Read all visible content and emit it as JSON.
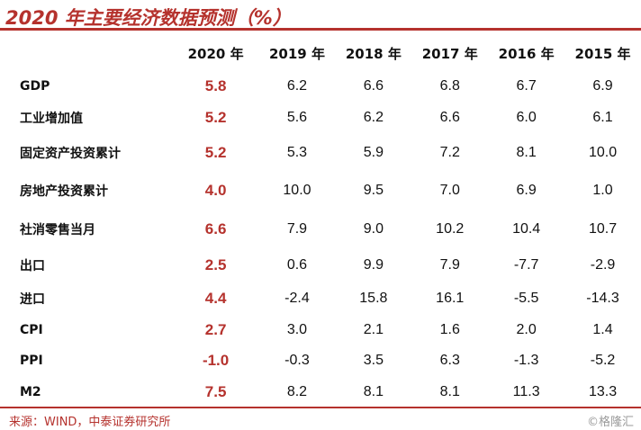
{
  "title": "2020 年主要经济数据预测（%）",
  "columns": [
    "2020 年",
    "2019 年",
    "2018 年",
    "2017 年",
    "2016 年",
    "2015 年"
  ],
  "rows": [
    {
      "label": "GDP",
      "values": [
        "5.8",
        "6.2",
        "6.6",
        "6.8",
        "6.7",
        "6.9"
      ]
    },
    {
      "label": "工业增加值",
      "values": [
        "5.2",
        "5.6",
        "6.2",
        "6.6",
        "6.0",
        "6.1"
      ]
    },
    {
      "label": "固定资产投资累计",
      "values": [
        "5.2",
        "5.3",
        "5.9",
        "7.2",
        "8.1",
        "10.0"
      ]
    },
    {
      "label": "房地产投资累计",
      "values": [
        "4.0",
        "10.0",
        "9.5",
        "7.0",
        "6.9",
        "1.0"
      ]
    },
    {
      "label": "社消零售当月",
      "values": [
        "6.6",
        "7.9",
        "9.0",
        "10.2",
        "10.4",
        "10.7"
      ]
    },
    {
      "label": "出口",
      "values": [
        "2.5",
        "0.6",
        "9.9",
        "7.9",
        "-7.7",
        "-2.9"
      ]
    },
    {
      "label": "进口",
      "values": [
        "4.4",
        "-2.4",
        "15.8",
        "16.1",
        "-5.5",
        "-14.3"
      ]
    },
    {
      "label": "CPI",
      "values": [
        "2.7",
        "3.0",
        "2.1",
        "1.6",
        "2.0",
        "1.4"
      ]
    },
    {
      "label": "PPI",
      "values": [
        "-1.0",
        "-0.3",
        "3.5",
        "6.3",
        "-1.3",
        "-5.2"
      ]
    },
    {
      "label": "M2",
      "values": [
        "7.5",
        "8.2",
        "8.1",
        "8.1",
        "11.3",
        "13.3"
      ]
    }
  ],
  "footer": {
    "source": "来源：WIND，中泰证券研究所",
    "watermark": "©格隆汇"
  },
  "colors": {
    "accent": "#b5322d",
    "watermark": "#9a9a9a"
  }
}
